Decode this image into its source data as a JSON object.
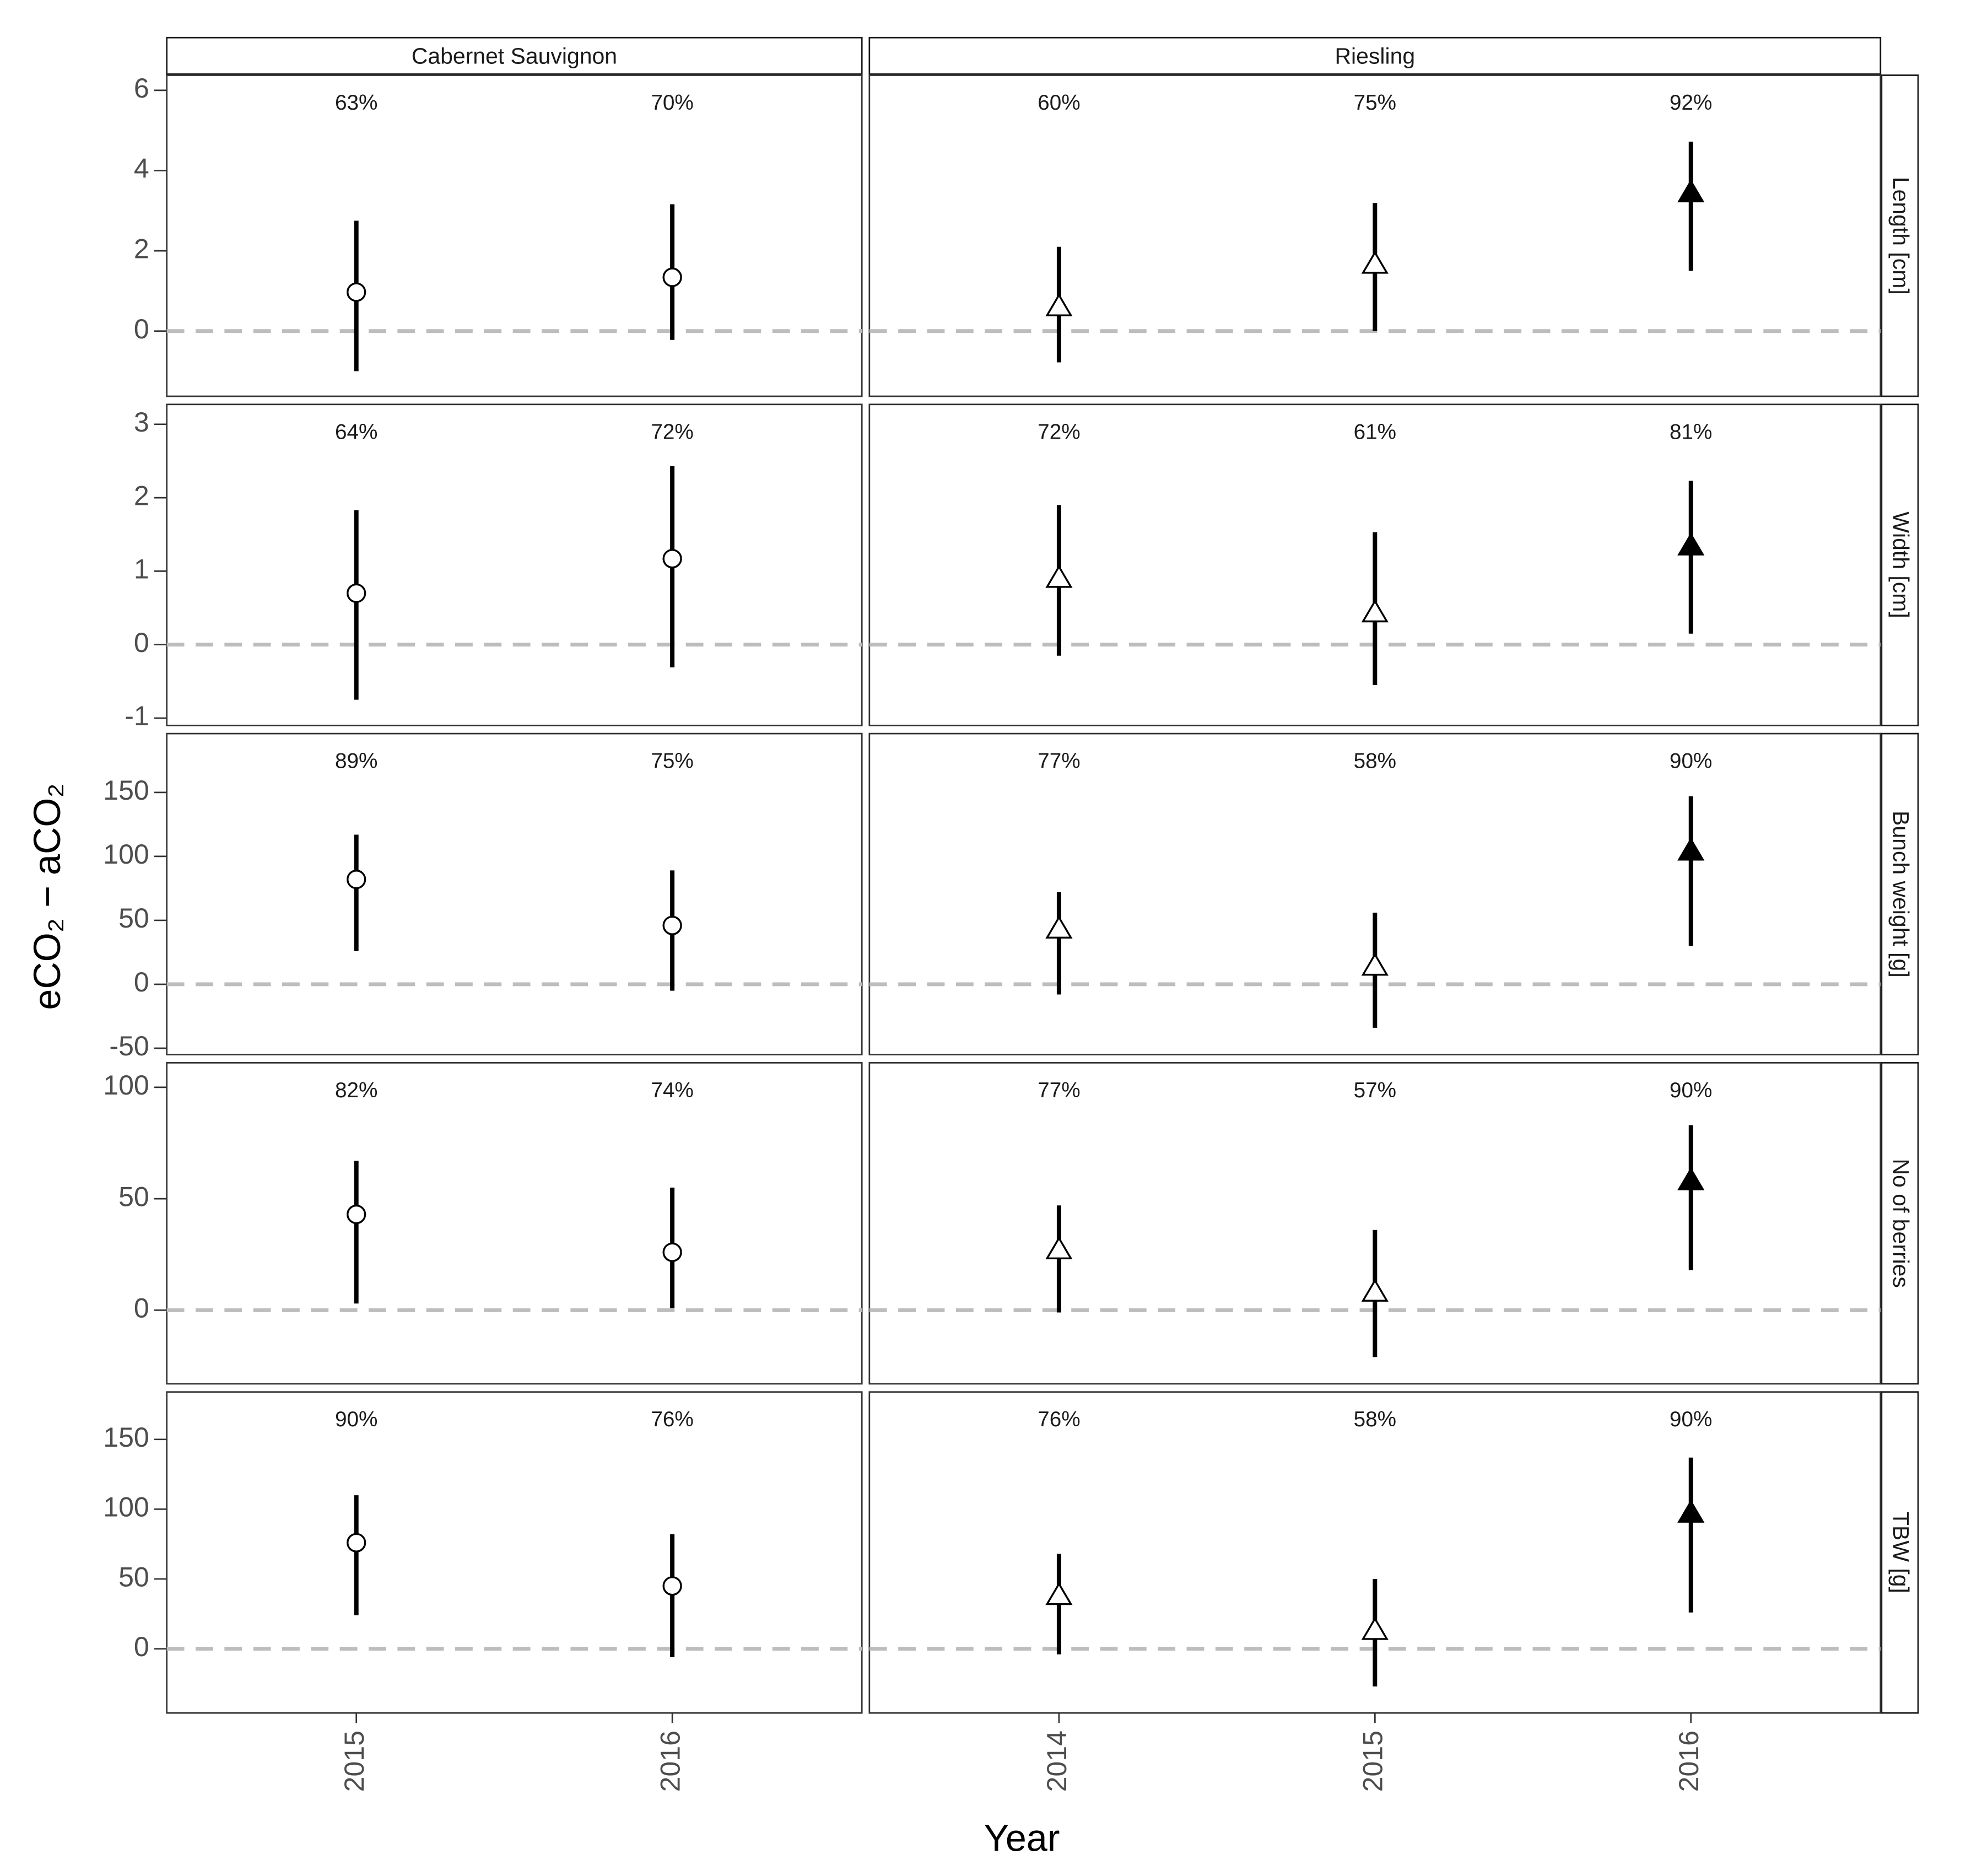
{
  "chart_data": {
    "type": "pointrange",
    "x_label": "Year",
    "y_label": "eCO₂ − aCO₂",
    "hline": 0,
    "columns": [
      {
        "label": "Cabernet Sauvignon",
        "categories": [
          "2015",
          "2016"
        ],
        "marker": "circle"
      },
      {
        "label": "Riesling",
        "categories": [
          "2014",
          "2015",
          "2016"
        ],
        "marker": "triangle"
      }
    ],
    "rows": [
      {
        "label": "Length [cm]",
        "ylim": [
          -1.625,
          6.375
        ],
        "yticks": [
          0,
          2,
          4,
          6
        ],
        "panels": [
          {
            "values": [
              0.97,
              1.34
            ],
            "lower": [
              -1.0,
              -0.22
            ],
            "upper": [
              2.75,
              3.16
            ],
            "annotations": [
              "63%",
              "70%"
            ],
            "colors": [
              "white",
              "white"
            ]
          },
          {
            "values": [
              0.6,
              1.66,
              3.44
            ],
            "lower": [
              -0.78,
              0,
              1.5
            ],
            "upper": [
              2.1,
              3.19,
              4.72
            ],
            "annotations": [
              "60%",
              "75%",
              "92%"
            ],
            "colors": [
              "white",
              "white",
              "black"
            ]
          }
        ]
      },
      {
        "label": "Width [cm]",
        "ylim": [
          -1.1,
          3.27
        ],
        "yticks": [
          -1,
          0,
          1,
          2,
          3
        ],
        "panels": [
          {
            "values": [
              0.7,
              1.17
            ],
            "lower": [
              -0.75,
              -0.31
            ],
            "upper": [
              1.83,
              2.43
            ],
            "annotations": [
              "64%",
              "72%"
            ],
            "colors": [
              "white",
              "white"
            ]
          },
          {
            "values": [
              0.9,
              0.43,
              1.34
            ],
            "lower": [
              -0.15,
              -0.55,
              0.15
            ],
            "upper": [
              1.9,
              1.53,
              2.23
            ],
            "annotations": [
              "72%",
              "61%",
              "81%"
            ],
            "colors": [
              "white",
              "white",
              "black"
            ]
          }
        ]
      },
      {
        "label": "Bunch weight [g]",
        "ylim": [
          -55,
          196
        ],
        "yticks": [
          -50,
          0,
          50,
          100,
          150
        ],
        "panels": [
          {
            "values": [
              82,
              46
            ],
            "lower": [
              26,
              -5
            ],
            "upper": [
              117,
              89
            ],
            "annotations": [
              "89%",
              "75%"
            ],
            "colors": [
              "white",
              "white"
            ]
          },
          {
            "values": [
              43,
              14,
              104
            ],
            "lower": [
              -8,
              -34,
              30
            ],
            "upper": [
              72,
              56,
              147
            ],
            "annotations": [
              "77%",
              "58%",
              "90%"
            ],
            "colors": [
              "white",
              "white",
              "black"
            ]
          }
        ]
      },
      {
        "label": "No of berries",
        "ylim": [
          -33,
          111
        ],
        "yticks": [
          0,
          50,
          100
        ],
        "panels": [
          {
            "values": [
              43,
              26
            ],
            "lower": [
              3,
              1
            ],
            "upper": [
              67,
              55
            ],
            "annotations": [
              "82%",
              "74%"
            ],
            "colors": [
              "white",
              "white"
            ]
          },
          {
            "values": [
              27,
              8,
              58
            ],
            "lower": [
              -1,
              -21,
              18
            ],
            "upper": [
              47,
              36,
              83
            ],
            "annotations": [
              "77%",
              "57%",
              "90%"
            ],
            "colors": [
              "white",
              "white",
              "black"
            ]
          }
        ]
      },
      {
        "label": "TBW [g]",
        "ylim": [
          -46,
          184
        ],
        "yticks": [
          0,
          50,
          100,
          150
        ],
        "panels": [
          {
            "values": [
              76,
              45
            ],
            "lower": [
              24,
              -6
            ],
            "upper": [
              110,
              82
            ],
            "annotations": [
              "90%",
              "76%"
            ],
            "colors": [
              "white",
              "white"
            ]
          },
          {
            "values": [
              38,
              13,
              97
            ],
            "lower": [
              -4,
              -27,
              26
            ],
            "upper": [
              68,
              50,
              137
            ],
            "annotations": [
              "76%",
              "58%",
              "90%"
            ],
            "colors": [
              "white",
              "white",
              "black"
            ]
          }
        ]
      }
    ]
  }
}
